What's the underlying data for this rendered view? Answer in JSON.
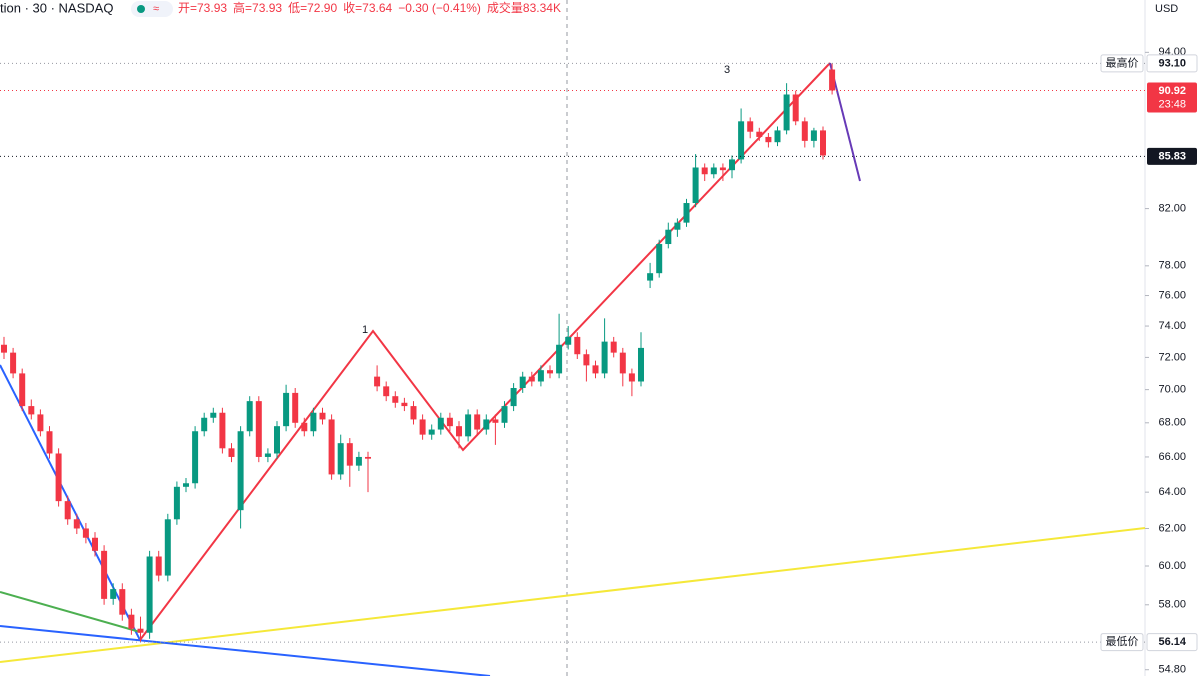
{
  "chart_data": {
    "type": "candlestick",
    "title": "tion · 30 · NASDAQ",
    "header_items": [
      "开=73.93",
      "高=73.93",
      "低=72.90",
      "收=73.64",
      "−0.30 (−0.41%)",
      "成交量83.34K"
    ],
    "currency": "USD",
    "log_scale": true,
    "grid": false,
    "up_color": "#089981",
    "down_color": "#f23645",
    "ylim": [
      54.5,
      98.4
    ],
    "yticks": [
      {
        "value": 94,
        "label": "94.00"
      },
      {
        "value": 82,
        "label": "82.00"
      },
      {
        "value": 78,
        "label": "78.00"
      },
      {
        "value": 76,
        "label": "76.00"
      },
      {
        "value": 74,
        "label": "74.00"
      },
      {
        "value": 72,
        "label": "72.00"
      },
      {
        "value": 70,
        "label": "70.00"
      },
      {
        "value": 68,
        "label": "68.00"
      },
      {
        "value": 66,
        "label": "66.00"
      },
      {
        "value": 64,
        "label": "64.00"
      },
      {
        "value": 62,
        "label": "62.00"
      },
      {
        "value": 60,
        "label": "60.00"
      },
      {
        "value": 58,
        "label": "58.00"
      },
      {
        "value": 54.8,
        "label": "54.80"
      }
    ],
    "price_tags": [
      {
        "tag": "最高价",
        "value": 93.1,
        "label": "93.10",
        "color": "#ffffff"
      },
      {
        "value": 90.92,
        "label": "90.92",
        "sub": "23:48",
        "color": "#f23645"
      },
      {
        "value": 85.83,
        "label": "85.83",
        "color": "#131722"
      },
      {
        "tag": "最低价",
        "value": 56.14,
        "label": "56.14",
        "color": "#ffffff"
      }
    ],
    "annotations": [
      "1",
      "3"
    ],
    "ohlc": [
      [
        72.8,
        73.3,
        71.9,
        72.3
      ],
      [
        72.3,
        72.6,
        70.7,
        71.0
      ],
      [
        71.0,
        71.3,
        68.7,
        69.0
      ],
      [
        69.0,
        69.4,
        68.2,
        68.5
      ],
      [
        68.5,
        68.8,
        67.2,
        67.5
      ],
      [
        67.5,
        67.8,
        65.9,
        66.2
      ],
      [
        66.2,
        66.5,
        63.2,
        63.5
      ],
      [
        63.5,
        63.8,
        62.2,
        62.5
      ],
      [
        62.5,
        62.8,
        61.7,
        62.0
      ],
      [
        62.0,
        62.3,
        61.2,
        61.5
      ],
      [
        61.5,
        61.8,
        60.5,
        60.8
      ],
      [
        60.8,
        61.1,
        58.0,
        58.3
      ],
      [
        58.3,
        59.1,
        58.0,
        58.8
      ],
      [
        58.8,
        59.1,
        57.2,
        57.5
      ],
      [
        57.5,
        57.8,
        56.5,
        56.8
      ],
      [
        56.8,
        57.4,
        56.14,
        56.6
      ],
      [
        56.6,
        60.8,
        56.3,
        60.5
      ],
      [
        60.5,
        60.8,
        59.2,
        59.5
      ],
      [
        59.5,
        62.8,
        59.2,
        62.5
      ],
      [
        62.5,
        64.6,
        62.2,
        64.3
      ],
      [
        64.3,
        64.8,
        64.0,
        64.5
      ],
      [
        64.5,
        67.8,
        64.2,
        67.5
      ],
      [
        67.5,
        68.6,
        67.2,
        68.3
      ],
      [
        68.3,
        68.9,
        68.0,
        68.6
      ],
      [
        68.6,
        68.9,
        66.2,
        66.5
      ],
      [
        66.5,
        66.8,
        65.7,
        66.0
      ],
      [
        63.0,
        67.8,
        62.0,
        67.5
      ],
      [
        67.5,
        69.6,
        67.2,
        69.3
      ],
      [
        69.3,
        69.6,
        65.7,
        66.0
      ],
      [
        66.0,
        66.5,
        65.7,
        66.2
      ],
      [
        66.2,
        68.1,
        65.9,
        67.8
      ],
      [
        67.8,
        70.3,
        67.5,
        69.8
      ],
      [
        69.8,
        70.1,
        67.7,
        68.0
      ],
      [
        68.0,
        68.3,
        67.2,
        67.5
      ],
      [
        67.5,
        68.9,
        67.2,
        68.6
      ],
      [
        68.6,
        68.9,
        67.9,
        68.2
      ],
      [
        68.2,
        68.5,
        64.7,
        65.0
      ],
      [
        65.0,
        67.3,
        64.7,
        66.8
      ],
      [
        66.8,
        67.1,
        64.3,
        65.5
      ],
      [
        65.5,
        66.3,
        65.2,
        66.0
      ],
      [
        66.0,
        66.3,
        64.0,
        65.9
      ],
      [
        70.8,
        71.5,
        69.9,
        70.2
      ],
      [
        70.2,
        70.5,
        69.3,
        69.6
      ],
      [
        69.6,
        69.9,
        68.9,
        69.2
      ],
      [
        69.2,
        69.5,
        68.7,
        69.0
      ],
      [
        69.0,
        69.3,
        67.9,
        68.2
      ],
      [
        68.2,
        68.5,
        67.0,
        67.3
      ],
      [
        67.3,
        67.9,
        67.0,
        67.6
      ],
      [
        67.6,
        68.6,
        67.3,
        68.3
      ],
      [
        68.3,
        68.6,
        67.5,
        67.8
      ],
      [
        67.8,
        68.1,
        66.5,
        67.2
      ],
      [
        67.2,
        68.8,
        66.9,
        68.5
      ],
      [
        68.5,
        68.8,
        67.3,
        67.6
      ],
      [
        67.6,
        68.5,
        67.3,
        68.2
      ],
      [
        68.2,
        68.5,
        66.7,
        68.0
      ],
      [
        68.0,
        69.3,
        67.7,
        69.0
      ],
      [
        69.0,
        70.4,
        68.7,
        70.1
      ],
      [
        70.1,
        71.1,
        69.8,
        70.8
      ],
      [
        70.8,
        71.1,
        70.2,
        70.5
      ],
      [
        70.5,
        71.5,
        70.2,
        71.2
      ],
      [
        71.2,
        71.5,
        70.7,
        71.0
      ],
      [
        71.0,
        74.8,
        70.7,
        72.8
      ],
      [
        72.8,
        74.0,
        72.5,
        73.3
      ],
      [
        73.3,
        73.6,
        71.9,
        72.2
      ],
      [
        72.2,
        72.5,
        70.5,
        71.5
      ],
      [
        71.5,
        71.8,
        70.7,
        71.0
      ],
      [
        71.0,
        74.5,
        70.7,
        73.0
      ],
      [
        73.0,
        73.3,
        72.0,
        72.3
      ],
      [
        72.3,
        72.6,
        70.2,
        71.0
      ],
      [
        71.0,
        71.3,
        69.6,
        70.5
      ],
      [
        70.5,
        73.6,
        70.2,
        72.6
      ],
      [
        77.0,
        78.2,
        76.5,
        77.5
      ],
      [
        77.5,
        79.8,
        77.2,
        79.5
      ],
      [
        79.5,
        81.0,
        79.2,
        80.5
      ],
      [
        80.5,
        81.3,
        80.0,
        81.0
      ],
      [
        81.0,
        82.7,
        80.7,
        82.4
      ],
      [
        82.4,
        86.0,
        82.1,
        85.0
      ],
      [
        85.0,
        85.3,
        84.0,
        84.5
      ],
      [
        84.5,
        85.3,
        84.2,
        85.0
      ],
      [
        85.0,
        85.3,
        84.0,
        84.8
      ],
      [
        84.8,
        85.9,
        84.2,
        85.6
      ],
      [
        85.6,
        89.5,
        85.3,
        88.5
      ],
      [
        88.5,
        88.8,
        87.2,
        87.7
      ],
      [
        87.7,
        88.0,
        87.0,
        87.3
      ],
      [
        87.3,
        87.6,
        86.5,
        86.9
      ],
      [
        86.9,
        88.1,
        86.6,
        87.8
      ],
      [
        87.8,
        91.5,
        87.5,
        90.6
      ],
      [
        90.6,
        90.9,
        88.2,
        88.5
      ],
      [
        88.5,
        88.8,
        86.5,
        87.0
      ],
      [
        87.0,
        88.0,
        86.5,
        87.8
      ],
      [
        87.8,
        88.1,
        85.6,
        85.9
      ],
      [
        92.6,
        93.1,
        90.6,
        90.92
      ]
    ]
  }
}
